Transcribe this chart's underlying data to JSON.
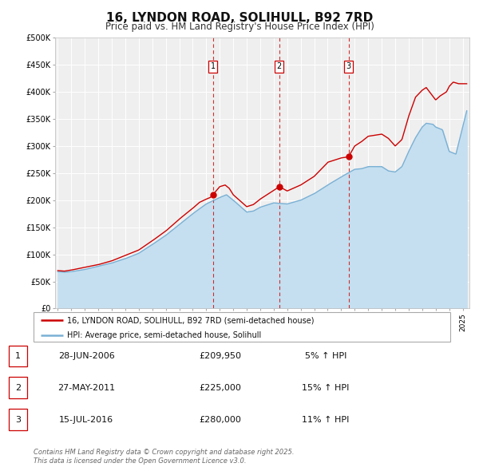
{
  "title": "16, LYNDON ROAD, SOLIHULL, B92 7RD",
  "subtitle": "Price paid vs. HM Land Registry's House Price Index (HPI)",
  "title_fontsize": 11,
  "subtitle_fontsize": 8.5,
  "background_color": "#ffffff",
  "plot_bg_color": "#efefef",
  "grid_color": "#ffffff",
  "house_color": "#cc0000",
  "hpi_color": "#7ab0d4",
  "hpi_fill_color": "#c5dff0",
  "ylim": [
    0,
    500000
  ],
  "yticks": [
    0,
    50000,
    100000,
    150000,
    200000,
    250000,
    300000,
    350000,
    400000,
    450000,
    500000
  ],
  "ytick_labels": [
    "£0",
    "£50K",
    "£100K",
    "£150K",
    "£200K",
    "£250K",
    "£300K",
    "£350K",
    "£400K",
    "£450K",
    "£500K"
  ],
  "xlim_start": 1994.8,
  "xlim_end": 2025.5,
  "transactions": [
    {
      "num": 1,
      "date_num": 2006.49,
      "price": 209950,
      "label": "1",
      "vline_x": 2006.49
    },
    {
      "num": 2,
      "date_num": 2011.41,
      "price": 225000,
      "label": "2",
      "vline_x": 2011.41
    },
    {
      "num": 3,
      "date_num": 2016.54,
      "price": 280000,
      "label": "3",
      "vline_x": 2016.54
    }
  ],
  "legend_house": "16, LYNDON ROAD, SOLIHULL, B92 7RD (semi-detached house)",
  "legend_hpi": "HPI: Average price, semi-detached house, Solihull",
  "table_rows": [
    {
      "num": 1,
      "date": "28-JUN-2006",
      "price": "£209,950",
      "pct": "5% ↑ HPI"
    },
    {
      "num": 2,
      "date": "27-MAY-2011",
      "price": "£225,000",
      "pct": "15% ↑ HPI"
    },
    {
      "num": 3,
      "date": "15-JUL-2016",
      "price": "£280,000",
      "pct": "11% ↑ HPI"
    }
  ],
  "footer": "Contains HM Land Registry data © Crown copyright and database right 2025.\nThis data is licensed under the Open Government Licence v3.0.",
  "hpi_anchors_x": [
    1995,
    1995.5,
    1996,
    1997,
    1998,
    1999,
    2000,
    2001,
    2002,
    2003,
    2004,
    2005,
    2006,
    2007,
    2007.5,
    2008,
    2009,
    2009.5,
    2010,
    2011,
    2012,
    2013,
    2014,
    2015,
    2016,
    2017,
    2017.5,
    2018,
    2019,
    2019.5,
    2020,
    2020.5,
    2021,
    2021.5,
    2022,
    2022.3,
    2022.8,
    2023,
    2023.5,
    2024,
    2024.5,
    2025.3
  ],
  "hpi_anchors_y": [
    68000,
    67000,
    68000,
    72000,
    78000,
    84000,
    92000,
    102000,
    118000,
    135000,
    155000,
    175000,
    193000,
    205000,
    210000,
    200000,
    178000,
    180000,
    187000,
    195000,
    193000,
    200000,
    212000,
    228000,
    243000,
    257000,
    258000,
    262000,
    262000,
    254000,
    252000,
    262000,
    290000,
    315000,
    335000,
    342000,
    340000,
    335000,
    330000,
    290000,
    285000,
    365000
  ],
  "house_anchors_x": [
    1995,
    1995.5,
    1996,
    1997,
    1998,
    1999,
    2000,
    2001,
    2002,
    2003,
    2004,
    2005,
    2005.5,
    2006,
    2006.3,
    2006.49,
    2007,
    2007.4,
    2007.7,
    2008,
    2009,
    2009.5,
    2010,
    2010.5,
    2011.0,
    2011.41,
    2012,
    2013,
    2014,
    2015,
    2016,
    2016.54,
    2017,
    2017.5,
    2018,
    2019,
    2019.5,
    2020,
    2020.5,
    2021,
    2021.5,
    2022,
    2022.3,
    2023,
    2023.3,
    2023.8,
    2024,
    2024.3,
    2024.7,
    2025.3
  ],
  "house_anchors_y": [
    70000,
    69000,
    71000,
    76000,
    81000,
    88000,
    98000,
    108000,
    125000,
    143000,
    165000,
    185000,
    196000,
    202000,
    205000,
    209950,
    225000,
    228000,
    222000,
    210000,
    188000,
    192000,
    202000,
    210000,
    218000,
    225000,
    217000,
    228000,
    244000,
    270000,
    278000,
    280000,
    300000,
    308000,
    318000,
    322000,
    314000,
    300000,
    312000,
    355000,
    390000,
    403000,
    408000,
    385000,
    392000,
    400000,
    410000,
    418000,
    415000,
    415000
  ]
}
